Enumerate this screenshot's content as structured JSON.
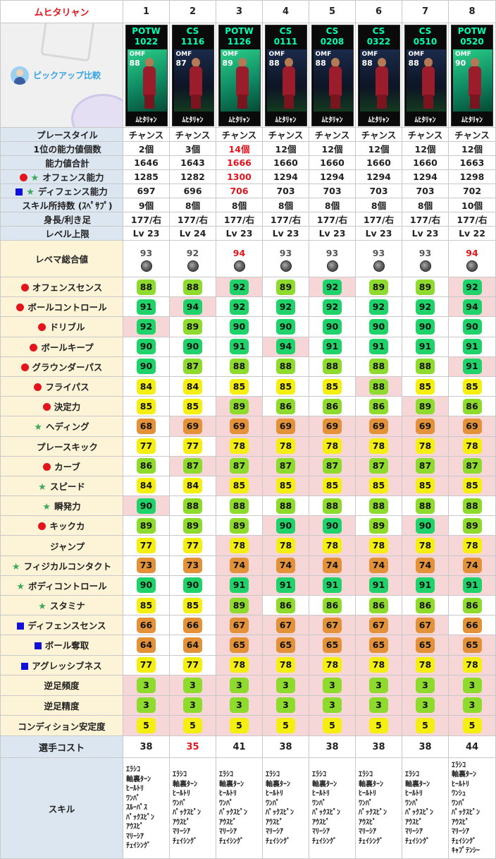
{
  "header": {
    "player": "ムヒタリャン",
    "columns": [
      "1",
      "2",
      "3",
      "4",
      "5",
      "6",
      "7",
      "8"
    ]
  },
  "pickup_label": "ピックアップ比較",
  "cards": [
    {
      "type": "POTW",
      "date": "1022",
      "pos": "OMF",
      "rating": "88",
      "name": "ﾑﾋﾀﾘｬﾝ",
      "bg": "teal"
    },
    {
      "type": "CS",
      "date": "1116",
      "pos": "OMF",
      "rating": "87",
      "name": "ﾑﾋﾀﾘｬﾝ",
      "bg": "dark"
    },
    {
      "type": "POTW",
      "date": "1126",
      "pos": "OMF",
      "rating": "89",
      "name": "ﾑﾋﾀﾘｬﾝ",
      "bg": "teal"
    },
    {
      "type": "CS",
      "date": "0111",
      "pos": "OMF",
      "rating": "88",
      "name": "ﾑﾋﾀﾘｬﾝ",
      "bg": "dark"
    },
    {
      "type": "CS",
      "date": "0208",
      "pos": "OMF",
      "rating": "88",
      "name": "ﾑﾋﾀﾘｬﾝ",
      "bg": "dark"
    },
    {
      "type": "CS",
      "date": "0322",
      "pos": "OMF",
      "rating": "88",
      "name": "ﾑﾋﾀﾘｬﾝ",
      "bg": "dark"
    },
    {
      "type": "CS",
      "date": "0510",
      "pos": "OMF",
      "rating": "88",
      "name": "ﾑﾋﾀﾘｬﾝ",
      "bg": "dark"
    },
    {
      "type": "POTW",
      "date": "0520",
      "pos": "OMF",
      "rating": "90",
      "name": "ﾑﾋﾀﾘｬﾝ",
      "bg": "teal"
    }
  ],
  "info_rows": [
    {
      "label": "プレースタイル",
      "mark": "none",
      "values": [
        "チャンス",
        "チャンス",
        "チャンス",
        "チャンス",
        "チャンス",
        "チャンス",
        "チャンス",
        "チャンス"
      ],
      "red": []
    },
    {
      "label": "1位の能力値個数",
      "mark": "none",
      "values": [
        "2個",
        "3個",
        "14個",
        "12個",
        "12個",
        "12個",
        "12個",
        "12個"
      ],
      "red": [
        2
      ]
    },
    {
      "label": "能力値合計",
      "mark": "none",
      "values": [
        "1646",
        "1643",
        "1666",
        "1660",
        "1660",
        "1660",
        "1660",
        "1663"
      ],
      "red": [
        2
      ]
    },
    {
      "label": "オフェンス能力",
      "mark": "dot-star",
      "values": [
        "1285",
        "1282",
        "1300",
        "1294",
        "1294",
        "1294",
        "1294",
        "1298"
      ],
      "red": [
        2
      ]
    },
    {
      "label": "ディフェンス能力",
      "mark": "sq-star",
      "values": [
        "697",
        "696",
        "706",
        "703",
        "703",
        "703",
        "703",
        "702"
      ],
      "red": [
        2
      ]
    },
    {
      "label": "スキル所持数 (ｽﾍﾟｻﾌﾟ)",
      "mark": "none",
      "values": [
        "9個",
        "8個",
        "8個",
        "8個",
        "8個",
        "8個",
        "8個",
        "10個"
      ],
      "red": []
    },
    {
      "label": "身長/利き足",
      "mark": "none",
      "values": [
        "177/右",
        "177/右",
        "177/右",
        "177/右",
        "177/右",
        "177/右",
        "177/右",
        "177/右"
      ],
      "red": []
    },
    {
      "label": "レベル上限",
      "mark": "none",
      "values": [
        "Lv 23",
        "Lv 24",
        "Lv 23",
        "Lv 23",
        "Lv 23",
        "Lv 23",
        "Lv 23",
        "Lv 22"
      ],
      "red": []
    }
  ],
  "level_total": {
    "label": "レベマ総合値",
    "values": [
      "93",
      "92",
      "94",
      "93",
      "93",
      "93",
      "93",
      "94"
    ],
    "red": [
      2,
      7
    ]
  },
  "attributes": [
    {
      "label": "オフェンスセンス",
      "mark": "dot",
      "values": [
        88,
        88,
        92,
        89,
        92,
        89,
        89,
        92
      ],
      "hl": [
        2,
        4,
        7
      ]
    },
    {
      "label": "ボールコントロール",
      "mark": "dot",
      "values": [
        91,
        94,
        92,
        92,
        92,
        92,
        92,
        94
      ],
      "hl": [
        1,
        7
      ]
    },
    {
      "label": "ドリブル",
      "mark": "dot",
      "values": [
        92,
        89,
        90,
        90,
        90,
        90,
        90,
        90
      ],
      "hl": [
        0
      ]
    },
    {
      "label": "ボールキープ",
      "mark": "dot",
      "values": [
        90,
        90,
        91,
        94,
        91,
        91,
        91,
        91
      ],
      "hl": [
        3
      ]
    },
    {
      "label": "グラウンダーパス",
      "mark": "dot",
      "values": [
        90,
        87,
        88,
        88,
        88,
        88,
        88,
        91
      ],
      "hl": [
        7
      ]
    },
    {
      "label": "フライパス",
      "mark": "dot",
      "values": [
        84,
        84,
        85,
        85,
        85,
        88,
        85,
        85
      ],
      "hl": [
        5
      ]
    },
    {
      "label": "決定力",
      "mark": "dot",
      "values": [
        85,
        85,
        89,
        86,
        86,
        86,
        89,
        86
      ],
      "hl": [
        2,
        6
      ]
    },
    {
      "label": "ヘディング",
      "mark": "star",
      "values": [
        68,
        69,
        69,
        69,
        69,
        69,
        69,
        69
      ],
      "hl": [
        1,
        2,
        3,
        4,
        5,
        6,
        7
      ]
    },
    {
      "label": "プレースキック",
      "mark": "none",
      "values": [
        77,
        77,
        78,
        78,
        78,
        78,
        78,
        78
      ],
      "hl": [
        2,
        3,
        4,
        5,
        6,
        7
      ]
    },
    {
      "label": "カーブ",
      "mark": "dot",
      "values": [
        86,
        87,
        87,
        87,
        87,
        87,
        87,
        87
      ],
      "hl": [
        1,
        2,
        3,
        4,
        5,
        6,
        7
      ]
    },
    {
      "label": "スピード",
      "mark": "star",
      "values": [
        84,
        84,
        85,
        85,
        85,
        85,
        85,
        85
      ],
      "hl": [
        2,
        3,
        4,
        5,
        6,
        7
      ]
    },
    {
      "label": "瞬発力",
      "mark": "star",
      "values": [
        90,
        88,
        88,
        88,
        88,
        88,
        88,
        88
      ],
      "hl": [
        0
      ]
    },
    {
      "label": "キックカ",
      "mark": "dot",
      "values": [
        89,
        89,
        89,
        90,
        90,
        89,
        90,
        89
      ],
      "hl": [
        3,
        4,
        6
      ]
    },
    {
      "label": "ジャンプ",
      "mark": "none",
      "values": [
        77,
        77,
        78,
        78,
        78,
        78,
        78,
        78
      ],
      "hl": [
        2,
        3,
        4,
        5,
        6,
        7
      ]
    },
    {
      "label": "フィジカルコンタクト",
      "mark": "star",
      "values": [
        73,
        73,
        74,
        74,
        74,
        74,
        74,
        74
      ],
      "hl": [
        2,
        3,
        4,
        5,
        6,
        7
      ]
    },
    {
      "label": "ボディコントロール",
      "mark": "star",
      "values": [
        90,
        90,
        91,
        91,
        91,
        91,
        91,
        91
      ],
      "hl": [
        2,
        3,
        4,
        5,
        6,
        7
      ]
    },
    {
      "label": "スタミナ",
      "mark": "star",
      "values": [
        85,
        85,
        89,
        86,
        86,
        86,
        86,
        86
      ],
      "hl": [
        2
      ]
    },
    {
      "label": "ディフェンスセンス",
      "mark": "sq",
      "values": [
        66,
        66,
        67,
        67,
        67,
        67,
        67,
        66
      ],
      "hl": [
        2,
        3,
        4,
        5,
        6
      ]
    },
    {
      "label": "ボール奪取",
      "mark": "sq",
      "values": [
        64,
        64,
        65,
        65,
        65,
        65,
        65,
        65
      ],
      "hl": [
        2,
        3,
        4,
        5,
        6,
        7
      ]
    },
    {
      "label": "アグレッシブネス",
      "mark": "sq",
      "values": [
        77,
        77,
        78,
        78,
        78,
        78,
        78,
        78
      ],
      "hl": [
        2,
        3,
        4,
        5,
        6,
        7
      ]
    }
  ],
  "weak_foot": [
    {
      "label": "逆足頻度",
      "values": [
        3,
        3,
        3,
        3,
        3,
        3,
        3,
        3
      ],
      "color": "g2"
    },
    {
      "label": "逆足精度",
      "values": [
        3,
        3,
        3,
        3,
        3,
        3,
        3,
        3
      ],
      "color": "g2"
    },
    {
      "label": "コンディション安定度",
      "values": [
        5,
        5,
        5,
        5,
        5,
        5,
        5,
        5
      ],
      "color": "y1"
    }
  ],
  "cost": {
    "label": "選手コスト",
    "values": [
      "38",
      "35",
      "41",
      "38",
      "38",
      "38",
      "38",
      "44"
    ],
    "red": [
      1
    ]
  },
  "skills": {
    "label": "スキル",
    "lists": [
      [
        "ｴﾗｼｺ",
        "軸裏ﾀｰﾝ",
        "ﾋｰﾙﾄﾘ",
        "ﾜﾝﾊﾟ",
        "ｽﾙｰﾊﾟｽ",
        "ﾊﾟｯｸｽﾋﾟﾝ",
        "ｱｳｽﾋﾟ",
        "ﾏﾘｰｼｱ",
        "ﾁｪｲｼﾝｸﾞ"
      ],
      [
        "ｴﾗｼｺ",
        "軸裏ﾀｰﾝ",
        "ﾋｰﾙﾄﾘ",
        "ﾜﾝﾊﾟ",
        "ﾊﾟｯｸｽﾋﾟﾝ",
        "ｱｳｽﾋﾟ",
        "ﾏﾘｰｼｱ",
        "ﾁｪｲｼﾝｸﾞ"
      ],
      [
        "ｴﾗｼｺ",
        "軸裏ﾀｰﾝ",
        "ﾋｰﾙﾄﾘ",
        "ﾜﾝﾊﾟ",
        "ﾊﾟｯｸｽﾋﾟﾝ",
        "ｱｳｽﾋﾟ",
        "ﾏﾘｰｼｱ",
        "ﾁｪｲｼﾝｸﾞ"
      ],
      [
        "ｴﾗｼｺ",
        "軸裏ﾀｰﾝ",
        "ﾋｰﾙﾄﾘ",
        "ﾜﾝﾊﾟ",
        "ﾊﾟｯｸｽﾋﾟﾝ",
        "ｱｳｽﾋﾟ",
        "ﾏﾘｰｼｱ",
        "ﾁｪｲｼﾝｸﾞ"
      ],
      [
        "ｴﾗｼｺ",
        "軸裏ﾀｰﾝ",
        "ﾋｰﾙﾄﾘ",
        "ﾜﾝﾊﾟ",
        "ﾊﾟｯｸｽﾋﾟﾝ",
        "ｱｳｽﾋﾟ",
        "ﾏﾘｰｼｱ",
        "ﾁｪｲｼﾝｸﾞ"
      ],
      [
        "ｴﾗｼｺ",
        "軸裏ﾀｰﾝ",
        "ﾋｰﾙﾄﾘ",
        "ﾜﾝﾊﾟ",
        "ﾊﾟｯｸｽﾋﾟﾝ",
        "ｱｳｽﾋﾟ",
        "ﾏﾘｰｼｱ",
        "ﾁｪｲｼﾝｸﾞ"
      ],
      [
        "ｴﾗｼｺ",
        "軸裏ﾀｰﾝ",
        "ﾋｰﾙﾄﾘ",
        "ﾜﾝﾊﾟ",
        "ﾊﾟｯｸｽﾋﾟﾝ",
        "ｱｳｽﾋﾟ",
        "ﾏﾘｰｼｱ",
        "ﾁｪｲｼﾝｸﾞ"
      ],
      [
        "ｴﾗｼｺ",
        "軸裏ﾀｰﾝ",
        "ﾋｰﾙﾄﾘ",
        "ﾜﾝｼｭ",
        "ﾜﾝﾊﾟ",
        "ﾊﾟｯｸｽﾋﾟﾝ",
        "ｱｳｽﾋﾟ",
        "ﾏﾘｰｼｱ",
        "ﾁｪｲｼﾝｸﾞ",
        "ｷｬﾌﾟﾃﾝｼｰ"
      ]
    ]
  },
  "colors": {
    "green_high": "#1fd36a",
    "green_mid": "#8edb2e",
    "yellow": "#f4ef11",
    "orange": "#e3923a",
    "highlight": "#f6d6d6",
    "red_text": "#e3141c",
    "card_type": "#00ffb4"
  }
}
